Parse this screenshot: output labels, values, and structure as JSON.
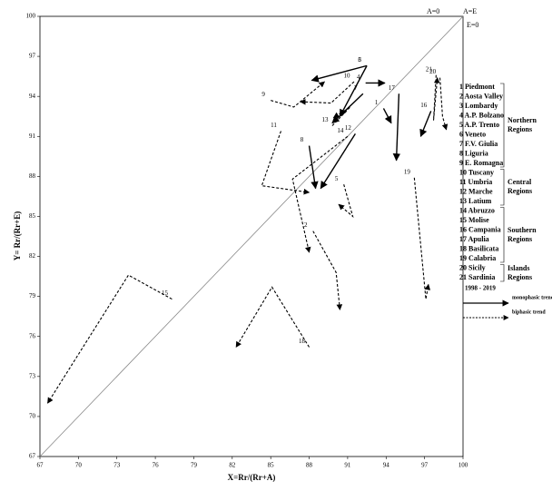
{
  "chart_data": {
    "type": "arrow",
    "x_label": "X=Rr/(Rr+A)",
    "y_label": "Y= Rr/(Rr+E)",
    "corner_labels": [
      "A=0",
      "A=E",
      "E=0"
    ],
    "xlim": [
      67,
      100
    ],
    "ylim": [
      67,
      100
    ],
    "xticks": [
      67,
      70,
      73,
      76,
      79,
      82,
      85,
      88,
      91,
      94,
      97,
      100
    ],
    "yticks": [
      67,
      70,
      73,
      76,
      79,
      82,
      85,
      88,
      91,
      94,
      97,
      100
    ],
    "color": "#000000",
    "regions": [
      "1 Piedmont",
      "2 Aosta Valley",
      "3 Lombardy",
      "4 A.P. Bolzano",
      "5 A.P. Trento",
      "6 Veneto",
      "7 F.V. Giulia",
      "8 Liguria",
      "9 E. Romagna",
      "10 Tuscany",
      "11 Umbria",
      "12 Marche",
      "13 Latium",
      "14 Abruzzo",
      "15 Molise",
      "16 Campania",
      "17 Apulia",
      "18 Basilicata",
      "19 Calabria",
      "20 Sicily",
      "21 Sardinia"
    ],
    "groups": [
      "Northern Regions",
      "Central Regions",
      "Southern Regions",
      "Islands Regions"
    ],
    "trend_legend": {
      "title": "1998 - 2019",
      "monophasic": "monophasic trend",
      "biphasic": "biphasic trend"
    },
    "series": [
      {
        "name": "1",
        "trend": "monophasic",
        "x": [
          93.8,
          94.4
        ],
        "y": [
          93.1,
          92.0
        ]
      },
      {
        "name": "2",
        "trend": "biphasic",
        "x": [
          88.3,
          90.1,
          90.4
        ],
        "y": [
          83.9,
          80.8,
          78.0
        ]
      },
      {
        "name": "3",
        "trend": "monophasic",
        "x": [
          92.5,
          88.2
        ],
        "y": [
          96.3,
          95.2
        ]
      },
      {
        "name": "4",
        "trend": "monophasic",
        "x": [
          92.4,
          93.9
        ],
        "y": [
          95.0,
          95.0
        ]
      },
      {
        "name": "5",
        "trend": "biphasic",
        "x": [
          90.7,
          91.4,
          90.3
        ],
        "y": [
          87.4,
          85.0,
          85.9
        ]
      },
      {
        "name": "6",
        "trend": "monophasic",
        "x": [
          92.5,
          90.4
        ],
        "y": [
          96.3,
          92.5
        ]
      },
      {
        "name": "7",
        "trend": "monophasic",
        "x": [
          92.2,
          89.8
        ],
        "y": [
          94.2,
          92.0
        ]
      },
      {
        "name": "8",
        "trend": "monophasic",
        "x": [
          88.0,
          88.5
        ],
        "y": [
          90.3,
          87.1
        ]
      },
      {
        "name": "9",
        "trend": "biphasic",
        "x": [
          85.0,
          86.8,
          89.2
        ],
        "y": [
          93.7,
          93.2,
          95.1
        ]
      },
      {
        "name": "10",
        "trend": "biphasic",
        "x": [
          91.5,
          89.7,
          87.3
        ],
        "y": [
          95.1,
          93.5,
          93.6
        ]
      },
      {
        "name": "11",
        "trend": "biphasic",
        "x": [
          85.8,
          84.3,
          88.0
        ],
        "y": [
          91.4,
          87.3,
          86.8
        ]
      },
      {
        "name": "12",
        "trend": "monophasic",
        "x": [
          91.6,
          88.9
        ],
        "y": [
          91.2,
          87.1
        ]
      },
      {
        "name": "13",
        "trend": "biphasic",
        "x": [
          89.8,
          91.2,
          89.9
        ],
        "y": [
          91.8,
          93.2,
          92.4
        ]
      },
      {
        "name": "14",
        "trend": "biphasic",
        "x": [
          91.0,
          86.7,
          88.0
        ],
        "y": [
          91.0,
          87.8,
          82.3
        ]
      },
      {
        "name": "15",
        "trend": "biphasic",
        "x": [
          77.3,
          73.9,
          67.6
        ],
        "y": [
          78.8,
          80.6,
          71.0
        ]
      },
      {
        "name": "16",
        "trend": "monophasic",
        "x": [
          97.5,
          96.7
        ],
        "y": [
          92.9,
          91.0
        ]
      },
      {
        "name": "17",
        "trend": "monophasic",
        "x": [
          95.0,
          94.8
        ],
        "y": [
          94.2,
          89.2
        ]
      },
      {
        "name": "18",
        "trend": "biphasic",
        "x": [
          88.0,
          85.1,
          82.3
        ],
        "y": [
          75.2,
          79.7,
          75.2
        ]
      },
      {
        "name": "19",
        "trend": "biphasic",
        "x": [
          96.2,
          97.1,
          97.3
        ],
        "y": [
          87.9,
          78.8,
          79.9
        ]
      },
      {
        "name": "20",
        "trend": "biphasic",
        "x": [
          98.2,
          98.4,
          98.7
        ],
        "y": [
          95.4,
          92.5,
          91.5
        ]
      },
      {
        "name": "21",
        "trend": "biphasic",
        "x": [
          97.9,
          97.7,
          98.0
        ],
        "y": [
          95.6,
          92.2,
          95.4
        ]
      }
    ]
  }
}
